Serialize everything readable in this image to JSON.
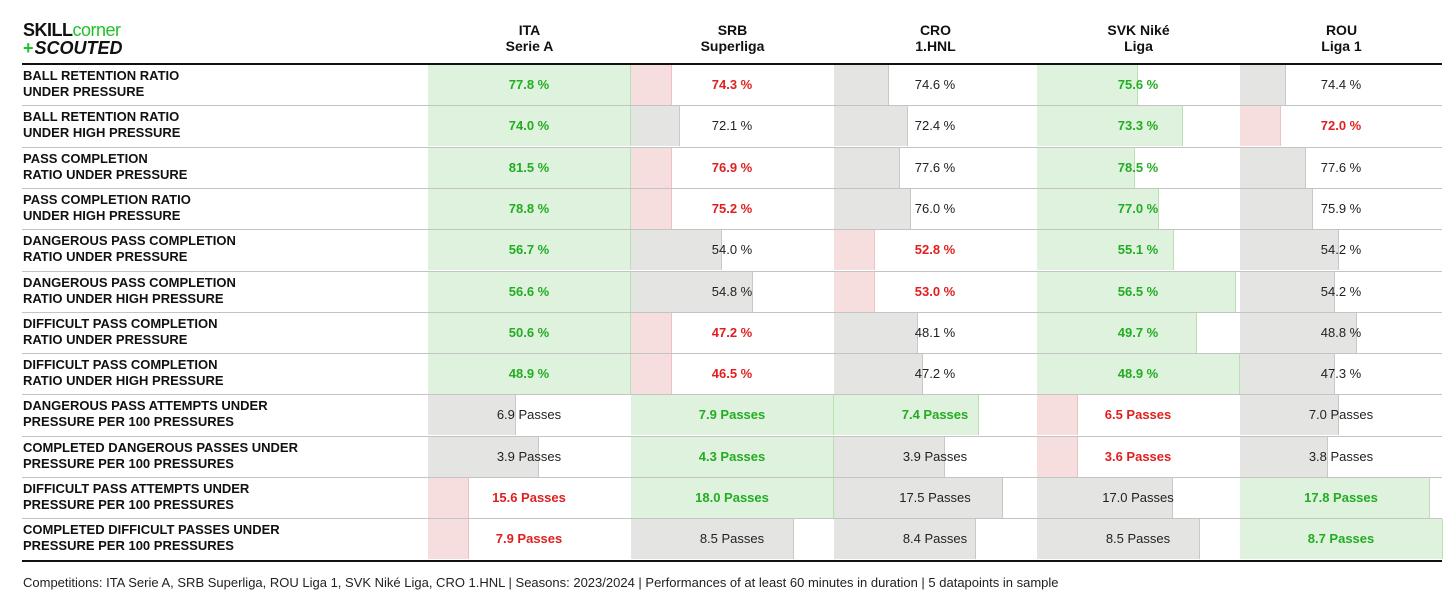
{
  "logo": {
    "word1": "SKILL",
    "word2": "corner",
    "plus": "+",
    "word3": "SCOUTED"
  },
  "chart_data": {
    "type": "table",
    "columns": [
      {
        "line1": "ITA",
        "line2": "Serie A"
      },
      {
        "line1": "SRB",
        "line2": "Superliga"
      },
      {
        "line1": "CRO",
        "line2": "1.HNL"
      },
      {
        "line1": "SVK Niké",
        "line2": "Liga"
      },
      {
        "line1": "ROU",
        "line2": "Liga 1"
      }
    ],
    "rows": [
      {
        "label": [
          "BALL RETENTION RATIO",
          "UNDER PRESSURE"
        ],
        "unit": "%",
        "values": [
          77.8,
          74.3,
          74.6,
          75.6,
          74.4
        ],
        "display": [
          "77.8 %",
          "74.3 %",
          "74.6 %",
          "75.6 %",
          "74.4 %"
        ],
        "status": [
          "good",
          "bad",
          "mid",
          "good",
          "mid"
        ]
      },
      {
        "label": [
          "BALL RETENTION RATIO",
          "UNDER HIGH PRESSURE"
        ],
        "unit": "%",
        "values": [
          74.0,
          72.1,
          72.4,
          73.3,
          72.0
        ],
        "display": [
          "74.0 %",
          "72.1 %",
          "72.4 %",
          "73.3 %",
          "72.0 %"
        ],
        "status": [
          "good",
          "mid",
          "mid",
          "good",
          "bad"
        ]
      },
      {
        "label": [
          "PASS COMPLETION",
          "RATIO UNDER PRESSURE"
        ],
        "unit": "%",
        "values": [
          81.5,
          76.9,
          77.6,
          78.5,
          77.6
        ],
        "display": [
          "81.5 %",
          "76.9 %",
          "77.6 %",
          "78.5 %",
          "77.6 %"
        ],
        "status": [
          "good",
          "bad",
          "mid",
          "good",
          "mid"
        ]
      },
      {
        "label": [
          "PASS COMPLETION RATIO",
          "UNDER HIGH PRESSURE"
        ],
        "unit": "%",
        "values": [
          78.8,
          75.2,
          76.0,
          77.0,
          75.9
        ],
        "display": [
          "78.8 %",
          "75.2 %",
          "76.0 %",
          "77.0 %",
          "75.9 %"
        ],
        "status": [
          "good",
          "bad",
          "mid",
          "good",
          "mid"
        ]
      },
      {
        "label": [
          "DANGEROUS PASS COMPLETION",
          "RATIO UNDER PRESSURE"
        ],
        "unit": "%",
        "values": [
          56.7,
          54.0,
          52.8,
          55.1,
          54.2
        ],
        "display": [
          "56.7 %",
          "54.0 %",
          "52.8 %",
          "55.1 %",
          "54.2 %"
        ],
        "status": [
          "good",
          "mid",
          "bad",
          "good",
          "mid"
        ]
      },
      {
        "label": [
          "DANGEROUS PASS COMPLETION",
          "RATIO UNDER HIGH PRESSURE"
        ],
        "unit": "%",
        "values": [
          56.6,
          54.8,
          53.0,
          56.5,
          54.2
        ],
        "display": [
          "56.6 %",
          "54.8 %",
          "53.0 %",
          "56.5 %",
          "54.2 %"
        ],
        "status": [
          "good",
          "mid",
          "bad",
          "good",
          "mid"
        ]
      },
      {
        "label": [
          "DIFFICULT PASS COMPLETION",
          "RATIO UNDER PRESSURE"
        ],
        "unit": "%",
        "values": [
          50.6,
          47.2,
          48.1,
          49.7,
          48.8
        ],
        "display": [
          "50.6 %",
          "47.2 %",
          "48.1 %",
          "49.7 %",
          "48.8 %"
        ],
        "status": [
          "good",
          "bad",
          "mid",
          "good",
          "mid"
        ]
      },
      {
        "label": [
          "DIFFICULT PASS COMPLETION",
          "RATIO UNDER HIGH PRESSURE"
        ],
        "unit": "%",
        "values": [
          48.9,
          46.5,
          47.2,
          48.9,
          47.3
        ],
        "display": [
          "48.9 %",
          "46.5 %",
          "47.2 %",
          "48.9 %",
          "47.3 %"
        ],
        "status": [
          "good",
          "bad",
          "mid",
          "good",
          "mid"
        ]
      },
      {
        "label": [
          "DANGEROUS PASS ATTEMPTS UNDER",
          "PRESSURE PER 100 PRESSURES"
        ],
        "unit": "Passes",
        "values": [
          6.9,
          7.9,
          7.4,
          6.5,
          7.0
        ],
        "display": [
          "6.9 Passes",
          "7.9 Passes",
          "7.4 Passes",
          "6.5 Passes",
          "7.0 Passes"
        ],
        "status": [
          "mid",
          "good",
          "good",
          "bad",
          "mid"
        ]
      },
      {
        "label": [
          "COMPLETED DANGEROUS PASSES UNDER",
          "PRESSURE PER 100 PRESSURES"
        ],
        "unit": "Passes",
        "values": [
          3.9,
          4.3,
          3.9,
          3.6,
          3.8
        ],
        "display": [
          "3.9 Passes",
          "4.3 Passes",
          "3.9 Passes",
          "3.6 Passes",
          "3.8 Passes"
        ],
        "status": [
          "mid",
          "good",
          "mid",
          "bad",
          "mid"
        ]
      },
      {
        "label": [
          "DIFFICULT PASS ATTEMPTS UNDER",
          "PRESSURE PER 100 PRESSURES"
        ],
        "unit": "Passes",
        "values": [
          15.6,
          18.0,
          17.5,
          17.0,
          17.8
        ],
        "display": [
          "15.6 Passes",
          "18.0 Passes",
          "17.5 Passes",
          "17.0 Passes",
          "17.8 Passes"
        ],
        "status": [
          "bad",
          "good",
          "mid",
          "mid",
          "good"
        ]
      },
      {
        "label": [
          "COMPLETED DIFFICULT PASSES UNDER",
          "PRESSURE PER 100 PRESSURES"
        ],
        "unit": "Passes",
        "values": [
          7.9,
          8.5,
          8.4,
          8.5,
          8.7
        ],
        "display": [
          "7.9 Passes",
          "8.5 Passes",
          "8.4 Passes",
          "8.5 Passes",
          "8.7 Passes"
        ],
        "status": [
          "bad",
          "mid",
          "mid",
          "mid",
          "good"
        ]
      }
    ],
    "colors": {
      "good_fill": "#dff2dd",
      "good_text": "#22ad22",
      "bad_fill": "#f7dede",
      "bad_text": "#e02020",
      "mid_fill": "#e4e5e3",
      "mid_text": "#222222"
    }
  },
  "footer": "Competitions: ITA Serie A, SRB Superliga, ROU Liga 1, SVK Niké Liga, CRO 1.HNL | Seasons: 2023/2024 | Performances of at least 60 minutes in duration | 5 datapoints in sample"
}
